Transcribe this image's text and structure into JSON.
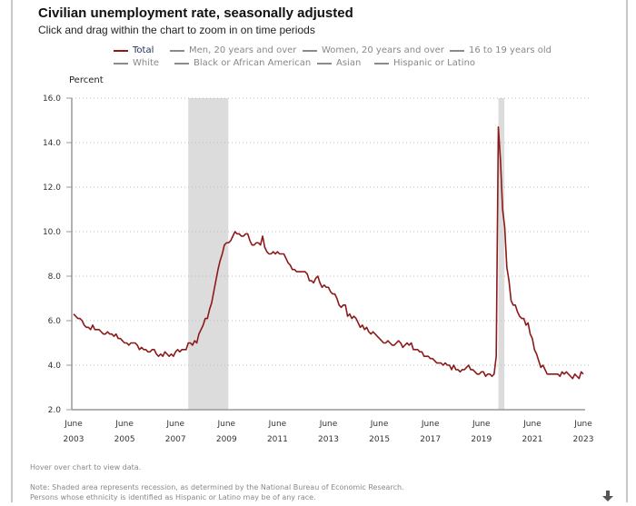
{
  "header": {
    "title": "Civilian unemployment rate, seasonally adjusted",
    "subtitle": "Click and drag within the chart to zoom in on time periods"
  },
  "legend": {
    "row1": [
      {
        "label": "Total",
        "active": true
      },
      {
        "label": "Men, 20 years and over",
        "active": false
      },
      {
        "label": "Women, 20 years and over",
        "active": false
      },
      {
        "label": "16 to 19 years old",
        "active": false
      }
    ],
    "row2": [
      {
        "label": "White",
        "active": false
      },
      {
        "label": "Black or African American",
        "active": false
      },
      {
        "label": "Asian",
        "active": false
      },
      {
        "label": "Hispanic or Latino",
        "active": false
      }
    ]
  },
  "colors": {
    "series": "#8b1a1a",
    "recession": "#dcdcdc",
    "grid": "#bdbdbd",
    "axis": "#999999"
  },
  "footer": {
    "hover_hint": "Hover over chart to view data.",
    "note_line1": "Note: Shaded area represents recession, as determined by the National Bureau of Economic Research.",
    "note_line2": "Persons whose ethnicity is identified as Hispanic or Latino may be of any race.",
    "download_icon": "download-arrow-icon"
  },
  "chart_data": {
    "type": "line",
    "title": "Civilian unemployment rate, seasonally adjusted",
    "xlabel": "",
    "ylabel": "Percent",
    "ylim": [
      2.0,
      16.0
    ],
    "yticks": [
      "2.0",
      "4.0",
      "6.0",
      "8.0",
      "10.0",
      "12.0",
      "14.0",
      "16.0"
    ],
    "xticks": [
      {
        "line1": "June",
        "line2": "2003"
      },
      {
        "line1": "June",
        "line2": "2005"
      },
      {
        "line1": "June",
        "line2": "2007"
      },
      {
        "line1": "June",
        "line2": "2009"
      },
      {
        "line1": "June",
        "line2": "2011"
      },
      {
        "line1": "June",
        "line2": "2013"
      },
      {
        "line1": "June",
        "line2": "2015"
      },
      {
        "line1": "June",
        "line2": "2017"
      },
      {
        "line1": "June",
        "line2": "2019"
      },
      {
        "line1": "June",
        "line2": "2021"
      },
      {
        "line1": "June",
        "line2": "2023"
      }
    ],
    "x_start": "2003-06",
    "x_end": "2023-06",
    "grid": true,
    "legend_position": "top",
    "recessions": [
      {
        "start": "2007-12",
        "end": "2009-06"
      },
      {
        "start": "2020-02",
        "end": "2020-04"
      }
    ],
    "series": [
      {
        "name": "Total",
        "frequency": "monthly",
        "start": "2003-06",
        "values": [
          6.3,
          6.2,
          6.1,
          6.1,
          6.0,
          5.8,
          5.7,
          5.7,
          5.6,
          5.8,
          5.6,
          5.6,
          5.6,
          5.5,
          5.4,
          5.4,
          5.5,
          5.4,
          5.4,
          5.3,
          5.4,
          5.2,
          5.2,
          5.1,
          5.0,
          5.0,
          4.9,
          5.0,
          5.0,
          5.0,
          4.9,
          4.7,
          4.8,
          4.7,
          4.7,
          4.6,
          4.6,
          4.7,
          4.7,
          4.5,
          4.4,
          4.5,
          4.4,
          4.6,
          4.5,
          4.4,
          4.5,
          4.4,
          4.6,
          4.7,
          4.6,
          4.7,
          4.7,
          4.7,
          5.0,
          5.0,
          4.9,
          5.1,
          5.0,
          5.4,
          5.6,
          5.8,
          6.1,
          6.1,
          6.5,
          6.8,
          7.3,
          7.8,
          8.3,
          8.7,
          9.0,
          9.4,
          9.5,
          9.5,
          9.6,
          9.8,
          10.0,
          9.9,
          9.9,
          9.8,
          9.8,
          9.9,
          9.9,
          9.6,
          9.4,
          9.4,
          9.5,
          9.5,
          9.4,
          9.8,
          9.3,
          9.1,
          9.0,
          9.0,
          9.1,
          9.0,
          9.1,
          9.0,
          9.0,
          9.0,
          8.8,
          8.6,
          8.5,
          8.3,
          8.3,
          8.2,
          8.2,
          8.2,
          8.2,
          8.2,
          8.1,
          7.8,
          7.8,
          7.7,
          7.9,
          8.0,
          7.7,
          7.5,
          7.6,
          7.5,
          7.5,
          7.3,
          7.2,
          7.2,
          7.0,
          6.7,
          6.6,
          6.7,
          6.7,
          6.2,
          6.3,
          6.1,
          6.2,
          6.1,
          5.9,
          5.7,
          5.8,
          5.6,
          5.7,
          5.5,
          5.4,
          5.5,
          5.4,
          5.3,
          5.2,
          5.1,
          5.0,
          5.0,
          5.1,
          5.0,
          4.9,
          4.9,
          5.0,
          5.1,
          5.0,
          4.8,
          4.9,
          5.0,
          4.9,
          5.0,
          4.7,
          4.7,
          4.7,
          4.6,
          4.6,
          4.4,
          4.4,
          4.4,
          4.3,
          4.3,
          4.2,
          4.1,
          4.1,
          4.1,
          4.0,
          4.1,
          4.0,
          4.0,
          3.8,
          4.0,
          3.8,
          3.8,
          3.7,
          3.8,
          3.8,
          3.9,
          4.0,
          3.8,
          3.8,
          3.7,
          3.6,
          3.6,
          3.7,
          3.7,
          3.5,
          3.6,
          3.6,
          3.5,
          3.6,
          4.4,
          14.7,
          13.2,
          11.0,
          10.2,
          8.4,
          7.8,
          6.9,
          6.7,
          6.7,
          6.4,
          6.2,
          6.1,
          6.1,
          5.8,
          5.9,
          5.4,
          5.2,
          4.7,
          4.5,
          4.2,
          3.9,
          4.0,
          3.8,
          3.6,
          3.6,
          3.6,
          3.6,
          3.6,
          3.6,
          3.5,
          3.7,
          3.6,
          3.7,
          3.6,
          3.5,
          3.4,
          3.6,
          3.5,
          3.4,
          3.7,
          3.6
        ]
      }
    ]
  }
}
